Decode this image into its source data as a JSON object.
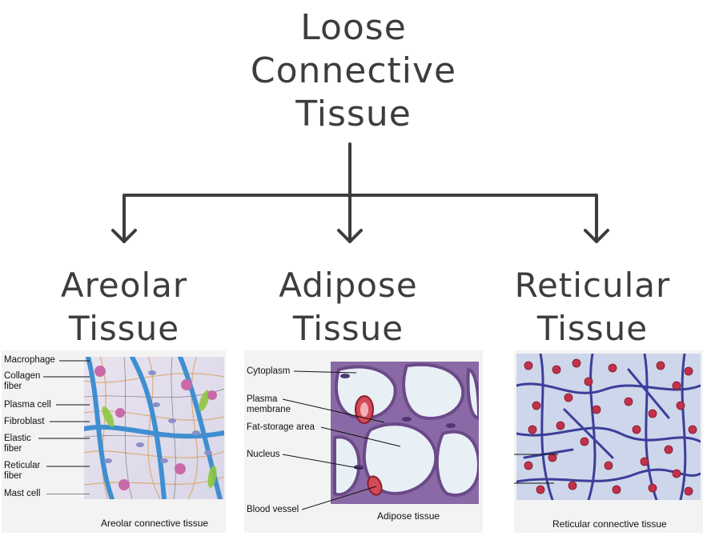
{
  "title": {
    "line1": "Loose",
    "line2": "Connective",
    "line3": "Tissue"
  },
  "branches": [
    {
      "heading1": "Areolar",
      "heading2": "Tissue",
      "caption": "Areolar connective tissue",
      "labels": [
        "Macrophage",
        "Collagen fiber",
        "Plasma cell",
        "Fibroblast",
        "Elastic fiber",
        "Reticular fiber",
        "Mast cell"
      ]
    },
    {
      "heading1": "Adipose",
      "heading2": "Tissue",
      "caption": "Adipose tissue",
      "labels": [
        "Cytoplasm",
        "Plasma membrane",
        "Fat-storage area",
        "Nucleus",
        "Blood vessel"
      ]
    },
    {
      "heading1": "Reticular",
      "heading2": "Tissue",
      "caption": "Reticular connective tissue",
      "labels": []
    }
  ],
  "colors": {
    "ink": "#3d3d3d",
    "panel": "#f3f3f3"
  }
}
